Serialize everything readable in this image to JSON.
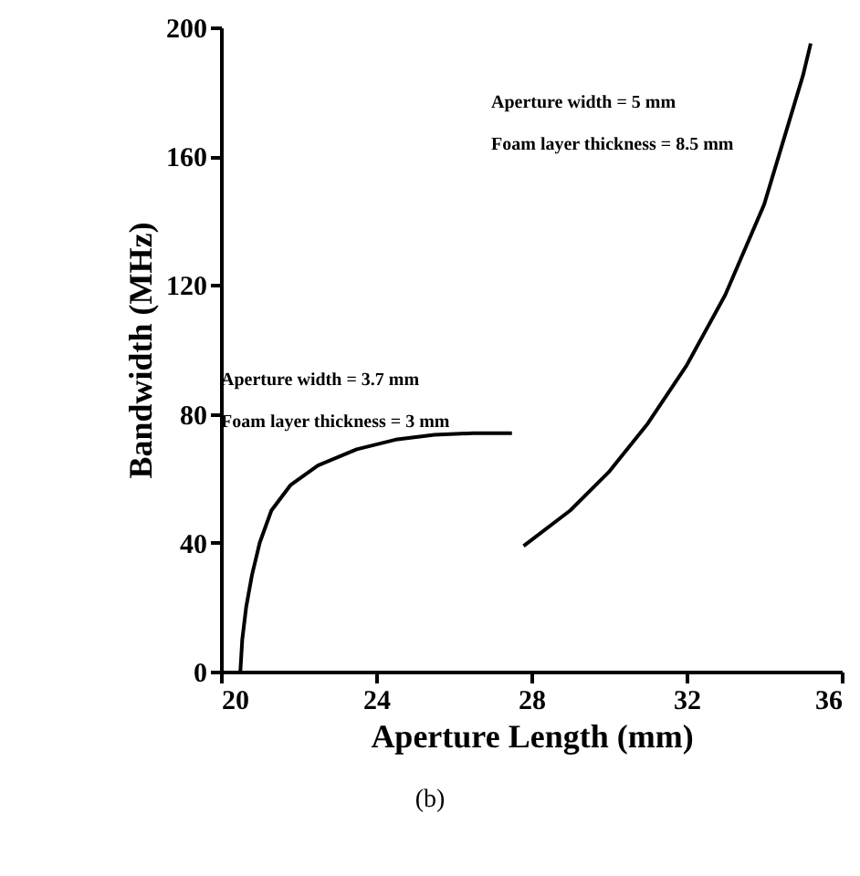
{
  "chart_data": {
    "type": "line",
    "xlabel": "Aperture Length (mm)",
    "ylabel": "Bandwidth (MHz)",
    "xlim": [
      20,
      36
    ],
    "xticks": [
      20,
      24,
      28,
      32,
      36
    ],
    "ylim": [
      0,
      200
    ],
    "yticks": [
      0,
      40,
      80,
      120,
      160,
      200
    ],
    "grid": false,
    "legend": false,
    "marker": "none",
    "line_style": "solid",
    "series": [
      {
        "color": "#000000",
        "x": [
          20.5,
          20.55,
          20.65,
          20.8,
          21.0,
          21.3,
          21.8,
          22.5,
          23.5,
          24.5,
          25.5,
          26.5,
          27.5
        ],
        "values": [
          0,
          10,
          20,
          30,
          40,
          50,
          58,
          64,
          69,
          72,
          73.5,
          74,
          74
        ]
      },
      {
        "color": "#000000",
        "x": [
          27.8,
          29,
          30,
          31,
          32,
          33,
          34,
          35,
          35.2
        ],
        "values": [
          39,
          50,
          62,
          77,
          95,
          117,
          145,
          185,
          195
        ]
      }
    ],
    "annotations": [
      "Aperture width = 5 mm",
      "Foam layer thickness = 8.5 mm",
      "Aperture width = 3.7 mm",
      "Foam layer thickness = 3 mm",
      "(b)"
    ]
  }
}
